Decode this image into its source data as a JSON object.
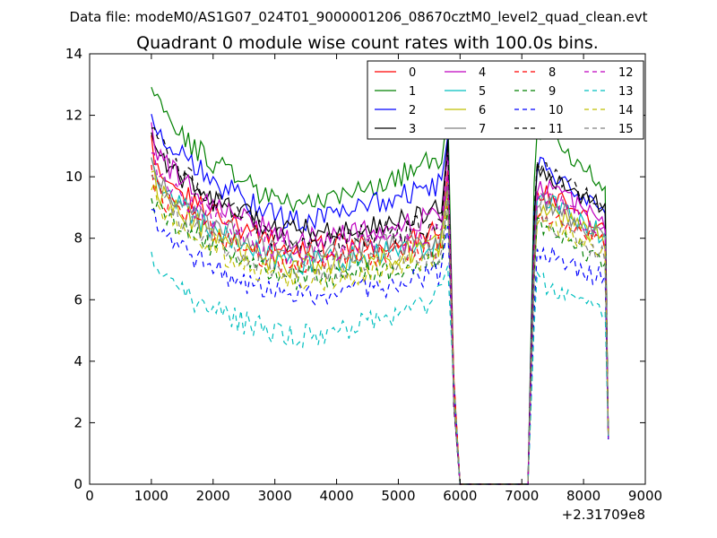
{
  "chart_data": {
    "type": "line",
    "suptitle": "Data file: modeM0/AS1G07_024T01_9000001206_08670cztM0_level2_quad_clean.evt",
    "title": "Quadrant 0 module wise count rates with 100.0s bins.",
    "xlabel": "",
    "ylabel": "",
    "x_offset_label": "+2.31709e8",
    "xlim": [
      0,
      9000
    ],
    "ylim": [
      0,
      14
    ],
    "xticks": [
      0,
      1000,
      2000,
      3000,
      4000,
      5000,
      6000,
      7000,
      8000,
      9000
    ],
    "yticks": [
      0,
      2,
      4,
      6,
      8,
      10,
      12,
      14
    ],
    "grid": false,
    "legend_position": "top-right",
    "legend_columns": 4,
    "segments": [
      [
        1000,
        5800
      ],
      [
        7200,
        8400
      ]
    ],
    "drop_to_zero": [
      5900,
      6000,
      7100
    ],
    "series": [
      {
        "name": "0",
        "color": "#ff0000",
        "dash": "solid",
        "start": 11.0,
        "mid": 7.7,
        "end": 8.2,
        "peak": 10.2,
        "second": 9.5,
        "tail": 8.3
      },
      {
        "name": "1",
        "color": "#008000",
        "dash": "solid",
        "start": 13.1,
        "mid": 9.1,
        "end": 10.8,
        "peak": 12.2,
        "second": 11.5,
        "tail": 9.7
      },
      {
        "name": "2",
        "color": "#0000ff",
        "dash": "solid",
        "start": 12.3,
        "mid": 8.6,
        "end": 9.9,
        "peak": 11.3,
        "second": 10.4,
        "tail": 8.9
      },
      {
        "name": "3",
        "color": "#000000",
        "dash": "solid",
        "start": 11.3,
        "mid": 8.2,
        "end": 9.0,
        "peak": 11.2,
        "second": 10.2,
        "tail": 8.9
      },
      {
        "name": "4",
        "color": "#bf00bf",
        "dash": "solid",
        "start": 11.4,
        "mid": 8.0,
        "end": 8.8,
        "peak": 10.8,
        "second": 9.7,
        "tail": 8.5
      },
      {
        "name": "5",
        "color": "#00bfbf",
        "dash": "solid",
        "start": 10.5,
        "mid": 7.2,
        "end": 7.9,
        "peak": 9.6,
        "second": 9.3,
        "tail": 8.0
      },
      {
        "name": "6",
        "color": "#bfbf00",
        "dash": "solid",
        "start": 10.2,
        "mid": 7.1,
        "end": 7.8,
        "peak": 9.6,
        "second": 9.0,
        "tail": 7.9
      },
      {
        "name": "7",
        "color": "#808080",
        "dash": "solid",
        "start": 10.4,
        "mid": 7.5,
        "end": 8.1,
        "peak": 9.8,
        "second": 9.2,
        "tail": 8.0
      },
      {
        "name": "8",
        "color": "#ff0000",
        "dash": "dashed",
        "start": 10.0,
        "mid": 7.2,
        "end": 7.8,
        "peak": 9.3,
        "second": 8.8,
        "tail": 7.7
      },
      {
        "name": "9",
        "color": "#008000",
        "dash": "dashed",
        "start": 9.6,
        "mid": 6.7,
        "end": 7.3,
        "peak": 9.0,
        "second": 8.4,
        "tail": 7.2
      },
      {
        "name": "10",
        "color": "#0000ff",
        "dash": "dashed",
        "start": 8.9,
        "mid": 6.1,
        "end": 6.9,
        "peak": 8.4,
        "second": 7.6,
        "tail": 6.6
      },
      {
        "name": "11",
        "color": "#000000",
        "dash": "dashed",
        "start": 11.9,
        "mid": 7.9,
        "end": 8.5,
        "peak": 11.0,
        "second": 10.3,
        "tail": 8.8
      },
      {
        "name": "12",
        "color": "#bf00bf",
        "dash": "dashed",
        "start": 10.8,
        "mid": 7.5,
        "end": 8.2,
        "peak": 10.1,
        "second": 9.5,
        "tail": 8.1
      },
      {
        "name": "13",
        "color": "#00bfbf",
        "dash": "dashed",
        "start": 7.4,
        "mid": 4.8,
        "end": 6.2,
        "peak": 7.1,
        "second": 6.6,
        "tail": 5.6
      },
      {
        "name": "14",
        "color": "#bfbf00",
        "dash": "dashed",
        "start": 9.8,
        "mid": 6.6,
        "end": 7.4,
        "peak": 9.1,
        "second": 8.6,
        "tail": 7.5
      },
      {
        "name": "15",
        "color": "#808080",
        "dash": "dashed",
        "start": 10.1,
        "mid": 6.9,
        "end": 7.6,
        "peak": 9.3,
        "second": 8.7,
        "tail": 7.4
      }
    ]
  }
}
